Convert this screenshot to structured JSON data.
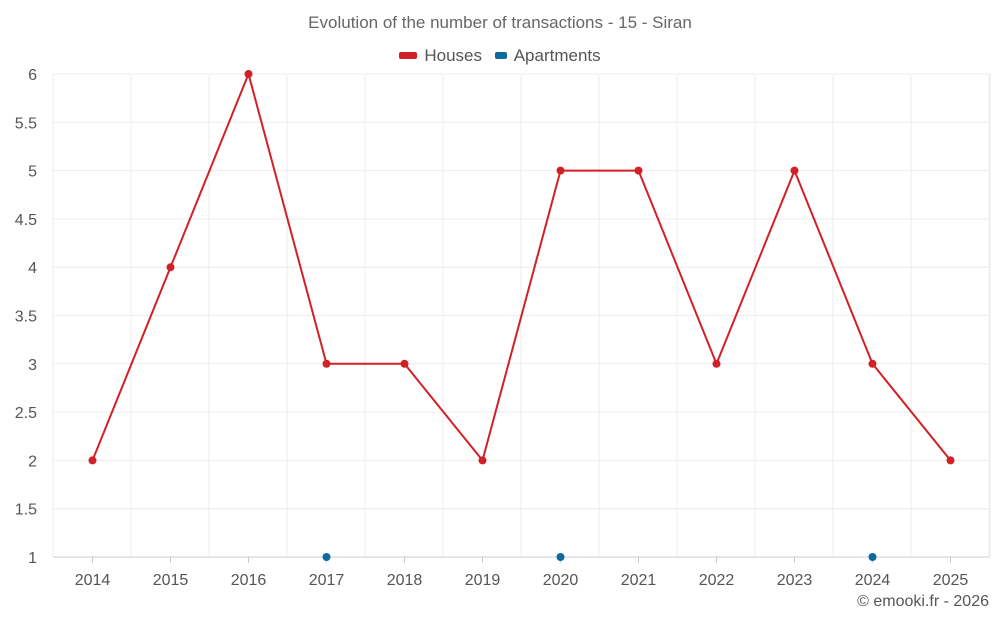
{
  "chart_data": {
    "type": "line",
    "title": "Evolution of the number of transactions - 15 - Siran",
    "categories": [
      "2014",
      "2015",
      "2016",
      "2017",
      "2018",
      "2019",
      "2020",
      "2021",
      "2022",
      "2023",
      "2024",
      "2025"
    ],
    "series": [
      {
        "name": "Houses",
        "color": "#d32027",
        "values": [
          2,
          4,
          6,
          3,
          3,
          2,
          5,
          5,
          3,
          5,
          3,
          2
        ]
      },
      {
        "name": "Apartments",
        "color": "#0e6a9b",
        "values": [
          null,
          null,
          null,
          1,
          null,
          null,
          1,
          null,
          null,
          null,
          1,
          null
        ]
      }
    ],
    "ylim": [
      1,
      6
    ],
    "yticks": [
      "1",
      "1.5",
      "2",
      "2.5",
      "3",
      "3.5",
      "4",
      "4.5",
      "5",
      "5.5",
      "6"
    ],
    "xlabel": "",
    "ylabel": "",
    "grid": true,
    "legend": "top-center"
  },
  "credit": "© emooki.fr - 2026"
}
